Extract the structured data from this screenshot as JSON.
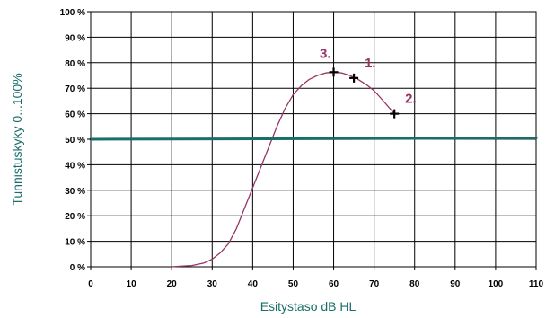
{
  "chart_data": {
    "type": "line",
    "title": "",
    "xlabel": "Esitystaso dB HL",
    "ylabel": "Tunnistuskyky 0...100%",
    "xlim": [
      0,
      110
    ],
    "ylim": [
      0,
      100
    ],
    "x_ticks": [
      "0",
      "10",
      "20",
      "30",
      "40",
      "50",
      "60",
      "70",
      "80",
      "90",
      "100",
      "110"
    ],
    "y_ticks": [
      "0 %",
      "10 %",
      "20 %",
      "30 %",
      "40 %",
      "50 %",
      "60 %",
      "70 %",
      "80 %",
      "90 %",
      "100 %"
    ],
    "grid": true,
    "series": [
      {
        "color": "#993366",
        "x": [
          20,
          22,
          25,
          28,
          30,
          32,
          34,
          36,
          38,
          40,
          42,
          44,
          46,
          48,
          50,
          52,
          54,
          56,
          58,
          60,
          62,
          64,
          66,
          68,
          70,
          72,
          75
        ],
        "y": [
          0,
          0.2,
          0.5,
          1.5,
          3,
          5.5,
          9,
          15,
          23,
          31,
          39,
          47,
          55,
          62,
          67.5,
          71,
          73.5,
          75,
          76,
          76.3,
          76,
          75,
          73.5,
          71.5,
          69,
          65.5,
          60
        ]
      },
      {
        "color": "#1a6e6a",
        "x": [
          0,
          110
        ],
        "y": [
          50,
          50.5
        ]
      }
    ],
    "markers": [
      {
        "label": "3.",
        "x": 60,
        "y": 76.3,
        "label_position": "above-left"
      },
      {
        "label": "1.",
        "x": 65,
        "y": 74,
        "label_position": "above-right"
      },
      {
        "label": "2.",
        "x": 75,
        "y": 60,
        "label_position": "above-right"
      }
    ],
    "label_color": "#993366",
    "marker_color": "#000000"
  }
}
